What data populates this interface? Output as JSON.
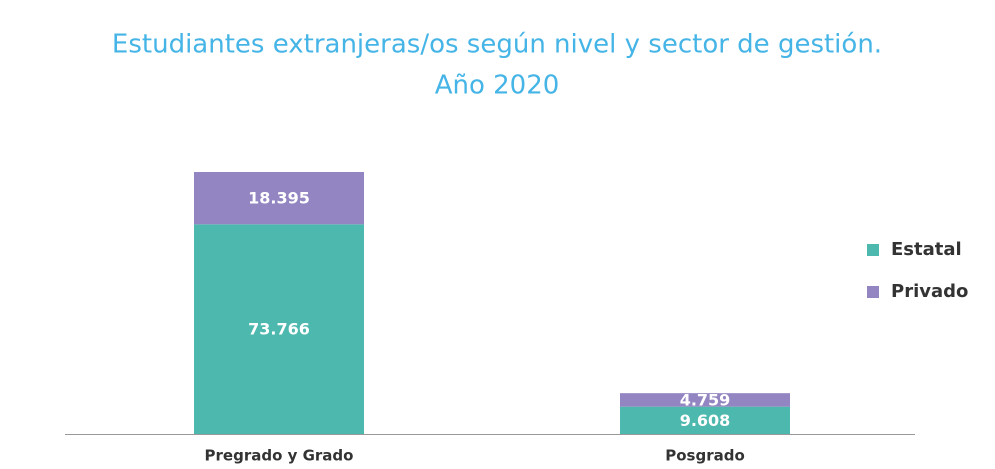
{
  "chart_data": {
    "type": "stacked_bar",
    "title": [
      "Estudiantes extranjeras/os según nivel y sector de gestión.",
      "Año 2020"
    ],
    "categories": [
      "Pregrado y Grado",
      "Posgrado"
    ],
    "series": [
      {
        "name": "Estatal",
        "color": "#4db8ad",
        "values": [
          73766,
          9608
        ],
        "value_labels": [
          "73.766",
          "9.608"
        ]
      },
      {
        "name": "Privado",
        "color": "#9385c2",
        "values": [
          18395,
          4759
        ],
        "value_labels": [
          "18.395",
          "4.759"
        ]
      }
    ],
    "legend": "right"
  }
}
